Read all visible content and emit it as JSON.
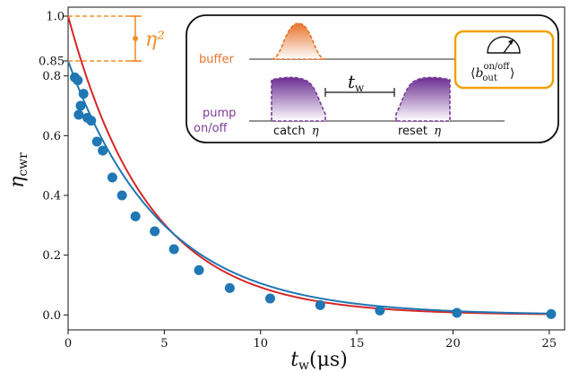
{
  "chart_data": {
    "type": "scatter",
    "xlabel": "t_w(μs)",
    "ylabel": "η_cwr",
    "xlim": [
      0,
      25.8
    ],
    "ylim": [
      -0.05,
      1.03
    ],
    "xticks": [
      0,
      5,
      10,
      15,
      20,
      25
    ],
    "yticks": [
      0.0,
      0.2,
      0.4,
      0.6,
      0.8
    ],
    "ref_ticks": [
      {
        "label": "1.0",
        "value": 1.0,
        "color": "#d62728"
      },
      {
        "label": "0.85",
        "value": 0.85,
        "color": "#1f77b4"
      }
    ],
    "series": [
      {
        "kind": "points",
        "color": "#1f77b4",
        "x": [
          0.35,
          0.5,
          0.55,
          0.65,
          0.8,
          1.0,
          1.2,
          1.5,
          1.8,
          2.3,
          2.8,
          3.5,
          4.5,
          5.5,
          6.8,
          8.4,
          10.5,
          13.1,
          16.2,
          20.2,
          25.1
        ],
        "y": [
          0.795,
          0.785,
          0.67,
          0.7,
          0.74,
          0.66,
          0.65,
          0.58,
          0.55,
          0.46,
          0.4,
          0.33,
          0.28,
          0.22,
          0.15,
          0.09,
          0.055,
          0.033,
          0.015,
          0.007,
          0.003
        ]
      },
      {
        "kind": "fit",
        "color": "#1f77b4",
        "model": "0.85*exp(-t/4.8)"
      },
      {
        "kind": "theory",
        "color": "#d62728",
        "model": "exp(-t/4.2)"
      }
    ],
    "annotations": {
      "eta_squared_label": "η²",
      "eta_squared_color": "#f28e2b"
    },
    "inset": {
      "buffer_label": "buffer",
      "buffer_color": "#e8732a",
      "pump_label_1": "pump",
      "pump_label_2": "on/off",
      "pump_color": "#7d3c98",
      "wait_label": "t_w",
      "catch_label": "catch",
      "reset_label": "reset",
      "eta_symbol": "η",
      "readout_label": "⟨b_out^on/off⟩",
      "readout_border_color": "#f0a000"
    }
  }
}
